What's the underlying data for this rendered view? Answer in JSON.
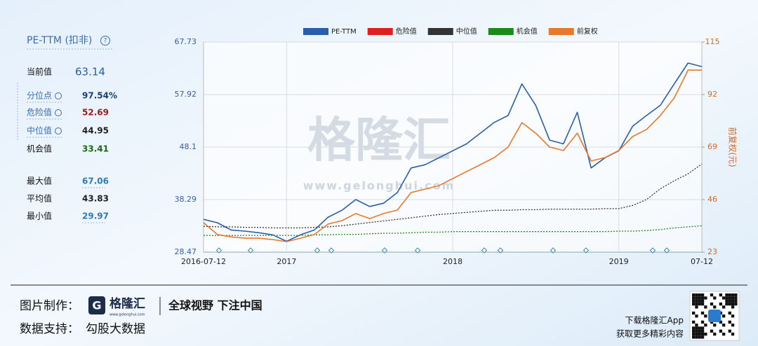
{
  "panel": {
    "title": "PE-TTM (扣非)",
    "rows": [
      {
        "label": "当前值",
        "value": 63.14
      },
      {
        "label": "分位点",
        "value": "97.54%"
      },
      {
        "label": "危险值",
        "value": 52.69
      },
      {
        "label": "中位值",
        "value": 44.95
      },
      {
        "label": "机会值",
        "value": 33.41
      },
      {
        "label": "最大值",
        "value": 67.06
      },
      {
        "label": "平均值",
        "value": 43.83
      },
      {
        "label": "最小值",
        "value": 29.97
      }
    ]
  },
  "watermark": {
    "name": "格隆汇",
    "url": "www.gelonghui.com"
  },
  "footer": {
    "made_by": "图片制作：",
    "brand": "格隆汇",
    "brand_url": "www.gelonghui.com",
    "slogan": "全球视野 下注中国",
    "data_by": "数据支持：",
    "data_source": "勾股大数据",
    "app_line1": "下载格隆汇App",
    "app_line2": "获取更多精彩内容"
  },
  "chart_data": {
    "type": "line",
    "categories": [
      "2016-07-12",
      null,
      null,
      null,
      null,
      null,
      "2017",
      null,
      null,
      null,
      null,
      null,
      null,
      null,
      null,
      null,
      null,
      null,
      "2018",
      null,
      null,
      null,
      null,
      null,
      null,
      null,
      null,
      null,
      null,
      null,
      "2019",
      null,
      null,
      null,
      null,
      null,
      "07-12"
    ],
    "y2_label": "前复权(元)",
    "ylim": [
      28.47,
      67.73
    ],
    "yticks": [
      28.47,
      38.29,
      48.1,
      57.92,
      67.73
    ],
    "y2lim": [
      23,
      115
    ],
    "y2ticks": [
      23,
      46,
      69,
      92,
      115
    ],
    "grid": true,
    "series": [
      {
        "name": "PE-TTM",
        "color": "#2a5ea8",
        "values": [
          34.6,
          33.96,
          32.6,
          32.4,
          32.1,
          31.7,
          30.5,
          31.7,
          32.6,
          35.0,
          36.3,
          38.3,
          37.0,
          37.6,
          39.6,
          44.2,
          44.8,
          46.1,
          47.4,
          48.7,
          50.7,
          52.7,
          54.0,
          59.9,
          55.9,
          49.4,
          48.7,
          54.6,
          44.2,
          46.1,
          47.4,
          52.0,
          54.0,
          55.9,
          59.9,
          63.8,
          63.14
        ]
      },
      {
        "name": "危险值",
        "color": "#e02020",
        "values": [
          null,
          null,
          null,
          null,
          null,
          null,
          null,
          null,
          null,
          null,
          null,
          null,
          null,
          null,
          null,
          null,
          null,
          null,
          null,
          null,
          null,
          null,
          null,
          null,
          null,
          null,
          null,
          null,
          null,
          null,
          null,
          null,
          null,
          null,
          null,
          null,
          null
        ]
      },
      {
        "name": "中位值",
        "color": "#333333",
        "dashed": true,
        "values": [
          33.3,
          33.2,
          33.2,
          33.1,
          33.1,
          33.0,
          33.0,
          33.0,
          33.1,
          33.2,
          33.4,
          33.7,
          34.0,
          34.3,
          34.6,
          34.9,
          35.2,
          35.5,
          35.7,
          35.9,
          36.1,
          36.3,
          36.3,
          36.4,
          36.4,
          36.5,
          36.5,
          36.5,
          36.5,
          36.6,
          36.6,
          37.2,
          38.3,
          40.3,
          41.8,
          43.1,
          44.95
        ]
      },
      {
        "name": "机会值",
        "color": "#1a8a1a",
        "dashed": true,
        "values": [
          31.6,
          31.6,
          31.6,
          31.6,
          31.6,
          31.6,
          31.6,
          31.6,
          31.7,
          31.7,
          31.8,
          31.8,
          31.9,
          32.0,
          32.0,
          32.1,
          32.2,
          32.2,
          32.3,
          32.3,
          32.3,
          32.3,
          32.3,
          32.3,
          32.3,
          32.3,
          32.3,
          32.3,
          32.3,
          32.3,
          32.4,
          32.4,
          32.5,
          32.7,
          33.0,
          33.2,
          33.41
        ]
      },
      {
        "name": "前复权",
        "color": "#e8782a",
        "axis": "y2",
        "values": [
          35.9,
          30.7,
          29.7,
          29.1,
          29.1,
          28.5,
          27.6,
          29.1,
          30.7,
          35.3,
          36.8,
          39.9,
          37.7,
          39.9,
          41.4,
          49.1,
          50.6,
          52.1,
          55.2,
          58.3,
          61.3,
          64.4,
          69.0,
          79.7,
          75.1,
          69.0,
          67.5,
          75.1,
          62.9,
          64.4,
          67.5,
          73.6,
          76.7,
          82.8,
          90.5,
          102.7,
          102.7
        ]
      }
    ]
  }
}
